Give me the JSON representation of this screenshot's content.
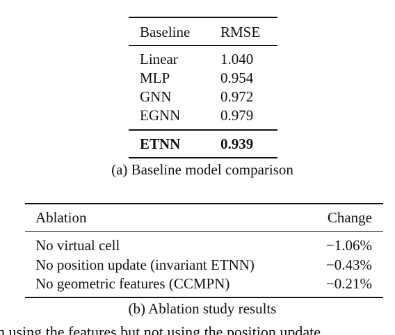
{
  "table1": {
    "header": [
      "Baseline",
      "RMSE"
    ],
    "rows": [
      [
        "Linear",
        "1.040"
      ],
      [
        "MLP",
        "0.954"
      ],
      [
        "GNN",
        "0.972"
      ],
      [
        "EGNN",
        "0.979"
      ]
    ],
    "best": [
      "ETNN",
      "0.939"
    ],
    "caption": "(a) Baseline model comparison"
  },
  "table2": {
    "header": [
      "Ablation",
      "Change"
    ],
    "rows": [
      [
        "No virtual cell",
        "−1.06%"
      ],
      [
        "No position update (invariant ETNN)",
        "−0.43%"
      ],
      [
        "No geometric features (CCMPN)",
        "−0.21%"
      ]
    ],
    "caption": "(b) Ablation study results"
  },
  "body_text": "n using the features but not using the position update"
}
